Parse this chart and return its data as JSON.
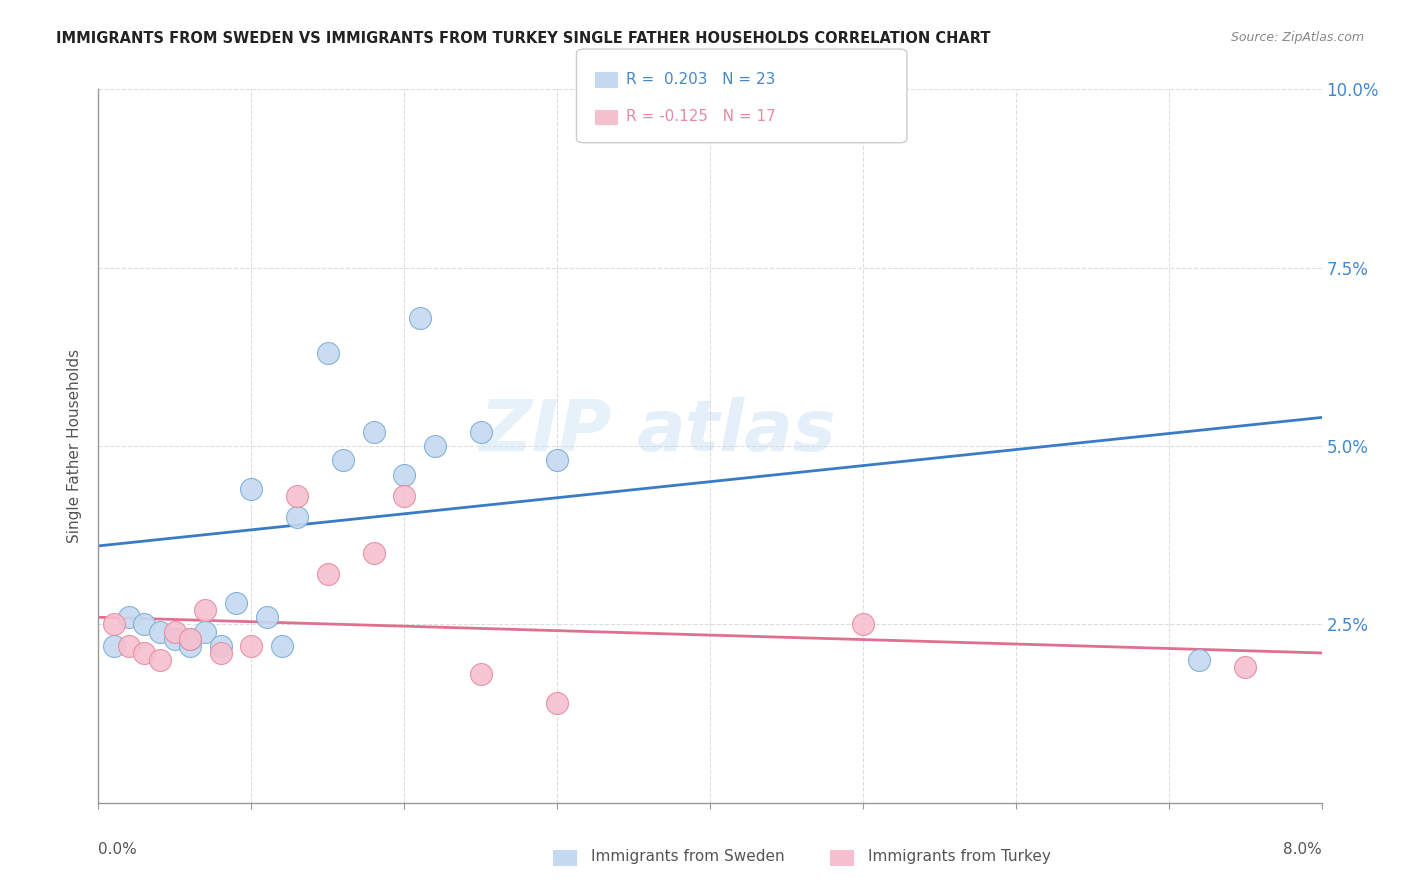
{
  "title": "IMMIGRANTS FROM SWEDEN VS IMMIGRANTS FROM TURKEY SINGLE FATHER HOUSEHOLDS CORRELATION CHART",
  "source": "Source: ZipAtlas.com",
  "ylabel": "Single Father Households",
  "xlim": [
    0.0,
    0.08
  ],
  "ylim": [
    0.0,
    0.1
  ],
  "yticks": [
    0.0,
    0.025,
    0.05,
    0.075,
    0.1
  ],
  "ytick_labels": [
    "",
    "2.5%",
    "5.0%",
    "7.5%",
    "10.0%"
  ],
  "xticks": [
    0.0,
    0.01,
    0.02,
    0.03,
    0.04,
    0.05,
    0.06,
    0.07,
    0.08
  ],
  "legend_blue_r": "R =  0.203",
  "legend_blue_n": "N = 23",
  "legend_pink_r": "R = -0.125",
  "legend_pink_n": "N = 17",
  "blue_color": "#c5d9f0",
  "blue_edge": "#7badd4",
  "pink_color": "#f5c0ce",
  "pink_edge": "#e88aa0",
  "blue_line_color": "#3a7cc4",
  "pink_line_color": "#e07090",
  "watermark_zip": "ZIP",
  "watermark_atlas": "atlas",
  "sweden_x": [
    0.001,
    0.002,
    0.003,
    0.004,
    0.005,
    0.006,
    0.006,
    0.007,
    0.008,
    0.009,
    0.01,
    0.011,
    0.012,
    0.013,
    0.015,
    0.016,
    0.018,
    0.02,
    0.021,
    0.022,
    0.025,
    0.03,
    0.072
  ],
  "sweden_y": [
    0.022,
    0.026,
    0.025,
    0.024,
    0.023,
    0.022,
    0.023,
    0.024,
    0.022,
    0.028,
    0.044,
    0.026,
    0.022,
    0.04,
    0.063,
    0.048,
    0.052,
    0.046,
    0.068,
    0.05,
    0.052,
    0.048,
    0.02
  ],
  "turkey_x": [
    0.001,
    0.002,
    0.003,
    0.004,
    0.005,
    0.006,
    0.007,
    0.008,
    0.01,
    0.013,
    0.015,
    0.018,
    0.02,
    0.025,
    0.03,
    0.05,
    0.075
  ],
  "turkey_y": [
    0.025,
    0.022,
    0.021,
    0.02,
    0.024,
    0.023,
    0.027,
    0.021,
    0.022,
    0.043,
    0.032,
    0.035,
    0.043,
    0.018,
    0.014,
    0.025,
    0.019
  ],
  "sweden_line_x": [
    0.0,
    0.08
  ],
  "sweden_line_y": [
    0.036,
    0.054
  ],
  "turkey_line_x": [
    0.0,
    0.08
  ],
  "turkey_line_y": [
    0.026,
    0.021
  ],
  "bg_color": "#ffffff",
  "title_color": "#222222",
  "axis_color": "#999999",
  "grid_color": "#dddddd",
  "tick_label_color": "#4488cc",
  "bottom_label_color": "#555555"
}
